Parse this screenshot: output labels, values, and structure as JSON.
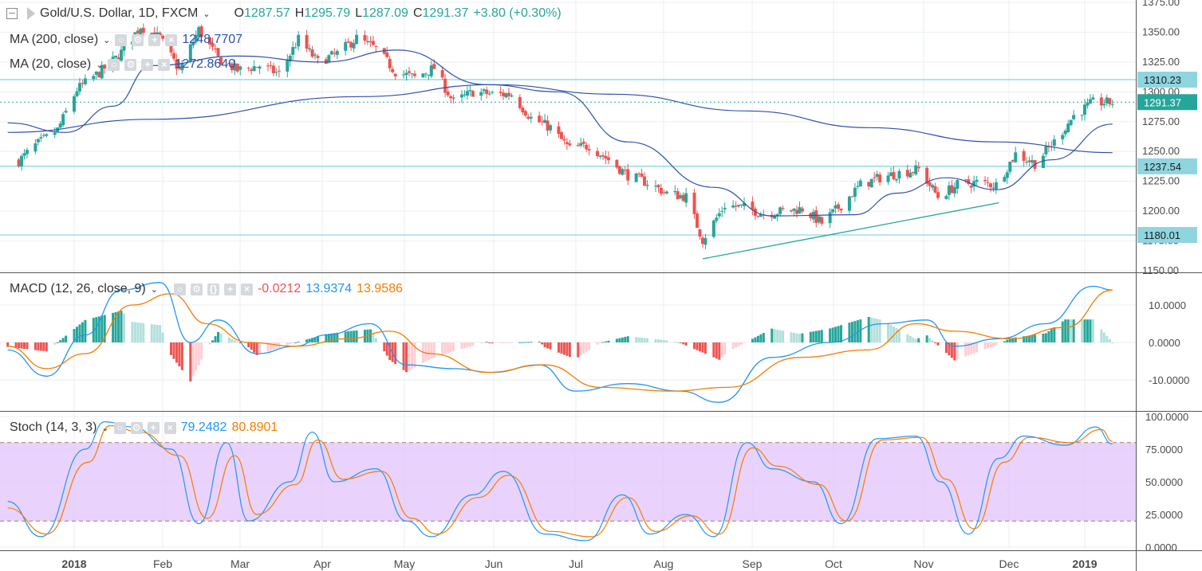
{
  "header": {
    "symbol": "Gold/U.S. Dollar, 1D, FXCM",
    "o_label": "O",
    "o_value": "1287.57",
    "h_label": "H",
    "h_value": "1295.79",
    "l_label": "L",
    "l_value": "1287.09",
    "c_label": "C",
    "c_value": "1291.37",
    "change": "+3.80 (+0.30%)"
  },
  "indicators": {
    "ma200_label": "MA (200, close)",
    "ma200_value": "1248.7707",
    "ma20_label": "MA (20, close)",
    "ma20_value": "1272.8640",
    "macd_label": "MACD (12, 26, close, 9)",
    "macd_hist": "-0.0212",
    "macd_line": "13.9374",
    "macd_signal": "13.9586",
    "stoch_label": "Stoch (14, 3, 3)",
    "stoch_k": "79.2482",
    "stoch_d": "80.8901"
  },
  "colors": {
    "up": "#26a69a",
    "down": "#ef5350",
    "ma": "#2f4fa8",
    "hline": "#7fd3de",
    "macd": "#2196f3",
    "signal": "#f57c00",
    "stoch_band": "#e1c4fb",
    "grid": "#e9eff3"
  },
  "chart_data": [
    {
      "type": "candlestick",
      "title": "Gold/U.S. Dollar, 1D, FXCM",
      "ylim": [
        1150,
        1375
      ],
      "y_ticks": [
        "1375.00",
        "1350.00",
        "1325.00",
        "1300.00",
        "1275.00",
        "1250.00",
        "1225.00",
        "1200.00",
        "1175.00",
        "1150.00"
      ],
      "x_ticks": [
        "2018",
        "Feb",
        "Mar",
        "Apr",
        "May",
        "Jun",
        "Jul",
        "Aug",
        "Sep",
        "Oct",
        "Nov",
        "Dec",
        "2019"
      ],
      "horizontal_levels": [
        "1310.23",
        "1237.54",
        "1180.01"
      ],
      "last_price": "1291.37",
      "close_path": [
        [
          "2017-12-12",
          1242
        ],
        [
          "2017-12-18",
          1255
        ],
        [
          "2017-12-26",
          1268
        ],
        [
          "2018-01-02",
          1302
        ],
        [
          "2018-01-10",
          1316
        ],
        [
          "2018-01-17",
          1330
        ],
        [
          "2018-01-25",
          1355
        ],
        [
          "2018-02-01",
          1345
        ],
        [
          "2018-02-08",
          1318
        ],
        [
          "2018-02-15",
          1352
        ],
        [
          "2018-02-22",
          1328
        ],
        [
          "2018-03-01",
          1318
        ],
        [
          "2018-03-09",
          1322
        ],
        [
          "2018-03-16",
          1315
        ],
        [
          "2018-03-23",
          1344
        ],
        [
          "2018-03-30",
          1325
        ],
        [
          "2018-04-06",
          1332
        ],
        [
          "2018-04-13",
          1345
        ],
        [
          "2018-04-20",
          1336
        ],
        [
          "2018-04-27",
          1317
        ],
        [
          "2018-05-04",
          1312
        ],
        [
          "2018-05-11",
          1320
        ],
        [
          "2018-05-18",
          1291
        ],
        [
          "2018-05-25",
          1300
        ],
        [
          "2018-06-01",
          1298
        ],
        [
          "2018-06-08",
          1298
        ],
        [
          "2018-06-15",
          1278
        ],
        [
          "2018-06-22",
          1270
        ],
        [
          "2018-06-29",
          1252
        ],
        [
          "2018-07-06",
          1255
        ],
        [
          "2018-07-13",
          1243
        ],
        [
          "2018-07-20",
          1230
        ],
        [
          "2018-07-27",
          1224
        ],
        [
          "2018-08-03",
          1215
        ],
        [
          "2018-08-10",
          1212
        ],
        [
          "2018-08-16",
          1176
        ],
        [
          "2018-08-24",
          1205
        ],
        [
          "2018-08-31",
          1203
        ],
        [
          "2018-09-07",
          1198
        ],
        [
          "2018-09-14",
          1200
        ],
        [
          "2018-09-21",
          1202
        ],
        [
          "2018-09-28",
          1190
        ],
        [
          "2018-10-05",
          1205
        ],
        [
          "2018-10-12",
          1222
        ],
        [
          "2018-10-19",
          1228
        ],
        [
          "2018-10-26",
          1232
        ],
        [
          "2018-11-02",
          1235
        ],
        [
          "2018-11-09",
          1212
        ],
        [
          "2018-11-16",
          1222
        ],
        [
          "2018-11-23",
          1224
        ],
        [
          "2018-11-30",
          1222
        ],
        [
          "2018-12-07",
          1248
        ],
        [
          "2018-12-14",
          1240
        ],
        [
          "2018-12-21",
          1258
        ],
        [
          "2018-12-28",
          1280
        ],
        [
          "2019-01-04",
          1291
        ],
        [
          "2019-01-11",
          1291
        ]
      ],
      "ma200": [
        [
          "2017-12-08",
          1266
        ],
        [
          "2018-01-29",
          1277
        ],
        [
          "2018-04-15",
          1296
        ],
        [
          "2018-06-01",
          1306
        ],
        [
          "2018-07-15",
          1298
        ],
        [
          "2018-09-01",
          1284
        ],
        [
          "2018-10-15",
          1270
        ],
        [
          "2018-11-30",
          1258
        ],
        [
          "2019-01-11",
          1249
        ]
      ],
      "ma20": [
        [
          "2017-12-08",
          1274
        ],
        [
          "2017-12-29",
          1266
        ],
        [
          "2018-01-15",
          1288
        ],
        [
          "2018-01-29",
          1322
        ],
        [
          "2018-03-01",
          1330
        ],
        [
          "2018-04-01",
          1325
        ],
        [
          "2018-04-28",
          1335
        ],
        [
          "2018-05-30",
          1306
        ],
        [
          "2018-06-25",
          1300
        ],
        [
          "2018-07-20",
          1258
        ],
        [
          "2018-08-20",
          1220
        ],
        [
          "2018-09-10",
          1196
        ],
        [
          "2018-10-10",
          1197
        ],
        [
          "2018-10-25",
          1215
        ],
        [
          "2018-11-12",
          1228
        ],
        [
          "2018-11-30",
          1218
        ],
        [
          "2018-12-20",
          1243
        ],
        [
          "2019-01-11",
          1273
        ]
      ],
      "trendline": [
        [
          "2018-08-16",
          1160
        ],
        [
          "2018-12-01",
          1207
        ]
      ]
    },
    {
      "type": "macd",
      "title": "MACD (12, 26, close, 9)",
      "ylim": [
        -18,
        18
      ],
      "y_ticks": [
        "10.0000",
        "0.0000",
        "-10.0000"
      ],
      "macd": [
        [
          "2017-12-08",
          -2
        ],
        [
          "2017-12-22",
          -9
        ],
        [
          "2018-01-05",
          2
        ],
        [
          "2018-01-18",
          14
        ],
        [
          "2018-02-01",
          16
        ],
        [
          "2018-02-12",
          0
        ],
        [
          "2018-02-22",
          6
        ],
        [
          "2018-03-08",
          -3
        ],
        [
          "2018-03-22",
          -1
        ],
        [
          "2018-04-02",
          2
        ],
        [
          "2018-04-18",
          5
        ],
        [
          "2018-05-01",
          -6
        ],
        [
          "2018-05-18",
          -7
        ],
        [
          "2018-06-01",
          -8
        ],
        [
          "2018-06-18",
          -6
        ],
        [
          "2018-07-01",
          -13
        ],
        [
          "2018-07-20",
          -11
        ],
        [
          "2018-08-08",
          -13
        ],
        [
          "2018-08-22",
          -16
        ],
        [
          "2018-09-10",
          -4
        ],
        [
          "2018-10-01",
          0
        ],
        [
          "2018-10-20",
          5
        ],
        [
          "2018-11-05",
          6
        ],
        [
          "2018-11-15",
          -1
        ],
        [
          "2018-12-01",
          1
        ],
        [
          "2018-12-18",
          5
        ],
        [
          "2019-01-04",
          15
        ],
        [
          "2019-01-11",
          14
        ]
      ],
      "signal": [
        [
          "2017-12-08",
          -1
        ],
        [
          "2017-12-22",
          -7
        ],
        [
          "2018-01-05",
          -3
        ],
        [
          "2018-01-22",
          10
        ],
        [
          "2018-02-05",
          13
        ],
        [
          "2018-02-18",
          5
        ],
        [
          "2018-03-05",
          0
        ],
        [
          "2018-03-22",
          -1
        ],
        [
          "2018-04-10",
          1
        ],
        [
          "2018-04-25",
          3
        ],
        [
          "2018-05-10",
          -3
        ],
        [
          "2018-05-30",
          -8
        ],
        [
          "2018-06-20",
          -6
        ],
        [
          "2018-07-10",
          -12
        ],
        [
          "2018-08-05",
          -13
        ],
        [
          "2018-08-25",
          -12
        ],
        [
          "2018-09-20",
          -4
        ],
        [
          "2018-10-15",
          -2
        ],
        [
          "2018-11-01",
          5
        ],
        [
          "2018-11-15",
          3
        ],
        [
          "2018-12-05",
          1
        ],
        [
          "2018-12-25",
          4
        ],
        [
          "2019-01-11",
          14
        ]
      ]
    },
    {
      "type": "stochastic",
      "title": "Stoch (14, 3, 3)",
      "ylim": [
        0,
        100
      ],
      "y_ticks": [
        "100.0000",
        "75.0000",
        "50.0000",
        "25.0000",
        "0.0000"
      ],
      "band": [
        20,
        80
      ],
      "k": [
        [
          "2017-12-08",
          35
        ],
        [
          "2017-12-20",
          8
        ],
        [
          "2018-01-05",
          75
        ],
        [
          "2018-01-12",
          96
        ],
        [
          "2018-01-22",
          92
        ],
        [
          "2018-02-05",
          75
        ],
        [
          "2018-02-15",
          18
        ],
        [
          "2018-02-25",
          80
        ],
        [
          "2018-03-05",
          20
        ],
        [
          "2018-03-20",
          50
        ],
        [
          "2018-03-28",
          88
        ],
        [
          "2018-04-05",
          50
        ],
        [
          "2018-04-20",
          60
        ],
        [
          "2018-05-01",
          20
        ],
        [
          "2018-05-10",
          8
        ],
        [
          "2018-05-25",
          40
        ],
        [
          "2018-06-05",
          58
        ],
        [
          "2018-06-20",
          10
        ],
        [
          "2018-07-05",
          5
        ],
        [
          "2018-07-18",
          40
        ],
        [
          "2018-07-28",
          10
        ],
        [
          "2018-08-10",
          25
        ],
        [
          "2018-08-20",
          8
        ],
        [
          "2018-09-01",
          80
        ],
        [
          "2018-09-10",
          60
        ],
        [
          "2018-09-25",
          50
        ],
        [
          "2018-10-05",
          18
        ],
        [
          "2018-10-18",
          83
        ],
        [
          "2018-11-01",
          85
        ],
        [
          "2018-11-10",
          50
        ],
        [
          "2018-11-20",
          10
        ],
        [
          "2018-12-01",
          68
        ],
        [
          "2018-12-10",
          85
        ],
        [
          "2018-12-25",
          78
        ],
        [
          "2019-01-05",
          92
        ],
        [
          "2019-01-11",
          79
        ]
      ],
      "d": [
        [
          "2017-12-08",
          30
        ],
        [
          "2017-12-22",
          10
        ],
        [
          "2018-01-06",
          65
        ],
        [
          "2018-01-14",
          93
        ],
        [
          "2018-01-25",
          88
        ],
        [
          "2018-02-08",
          70
        ],
        [
          "2018-02-18",
          22
        ],
        [
          "2018-02-28",
          70
        ],
        [
          "2018-03-08",
          25
        ],
        [
          "2018-03-22",
          48
        ],
        [
          "2018-03-30",
          82
        ],
        [
          "2018-04-08",
          52
        ],
        [
          "2018-04-22",
          58
        ],
        [
          "2018-05-03",
          22
        ],
        [
          "2018-05-12",
          10
        ],
        [
          "2018-05-27",
          38
        ],
        [
          "2018-06-07",
          55
        ],
        [
          "2018-06-22",
          12
        ],
        [
          "2018-07-07",
          8
        ],
        [
          "2018-07-20",
          38
        ],
        [
          "2018-07-30",
          12
        ],
        [
          "2018-08-12",
          24
        ],
        [
          "2018-08-22",
          10
        ],
        [
          "2018-09-03",
          76
        ],
        [
          "2018-09-12",
          62
        ],
        [
          "2018-09-27",
          48
        ],
        [
          "2018-10-07",
          20
        ],
        [
          "2018-10-20",
          82
        ],
        [
          "2018-11-03",
          84
        ],
        [
          "2018-11-12",
          52
        ],
        [
          "2018-11-22",
          14
        ],
        [
          "2018-12-03",
          65
        ],
        [
          "2018-12-12",
          84
        ],
        [
          "2018-12-27",
          80
        ],
        [
          "2019-01-07",
          90
        ],
        [
          "2019-01-11",
          81
        ]
      ]
    }
  ]
}
